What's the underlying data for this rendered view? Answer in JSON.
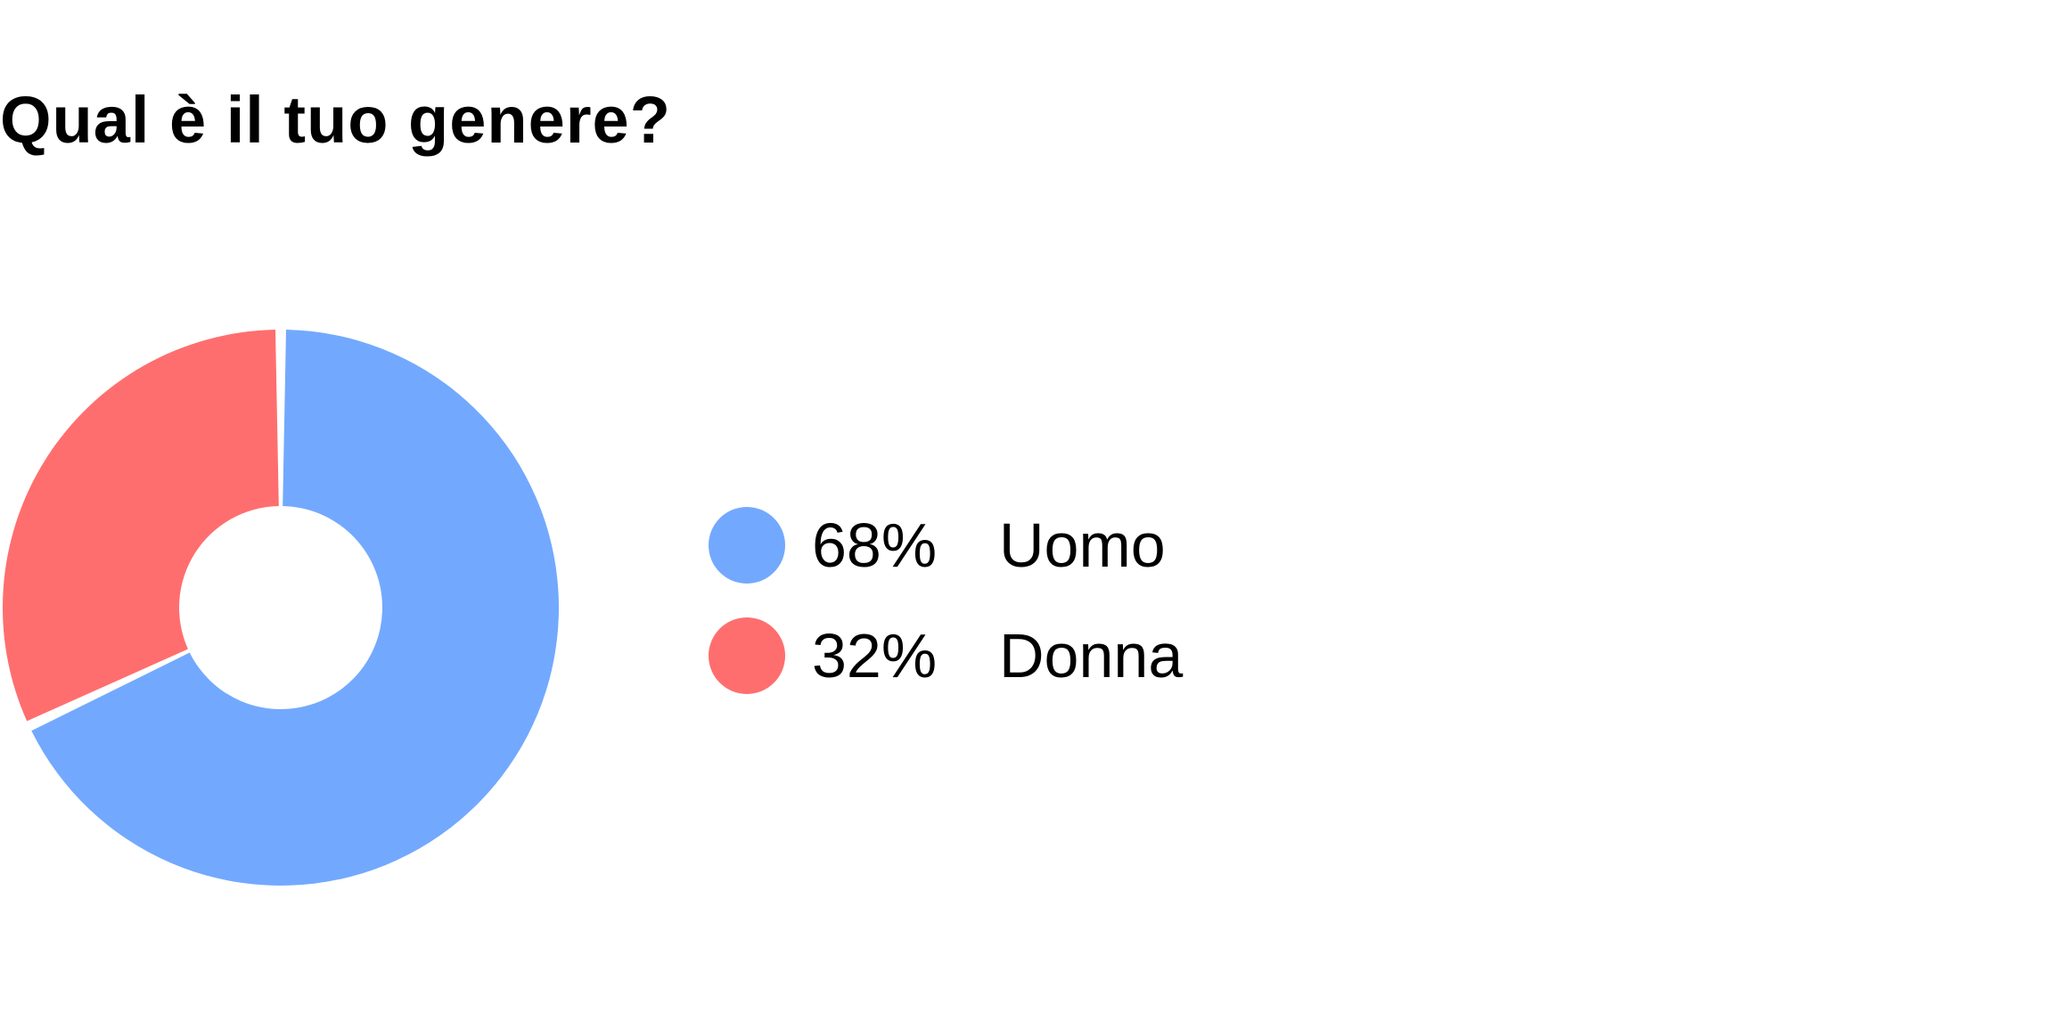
{
  "chart_data": {
    "type": "pie",
    "title": "Qual è il tuo genere?",
    "slices": [
      {
        "label": "Uomo",
        "value": 68,
        "display": "68%",
        "color": "#72a9fe"
      },
      {
        "label": "Donna",
        "value": 32,
        "display": "32%",
        "color": "#ff6e6e"
      }
    ],
    "donut": true,
    "legend_position": "right"
  }
}
